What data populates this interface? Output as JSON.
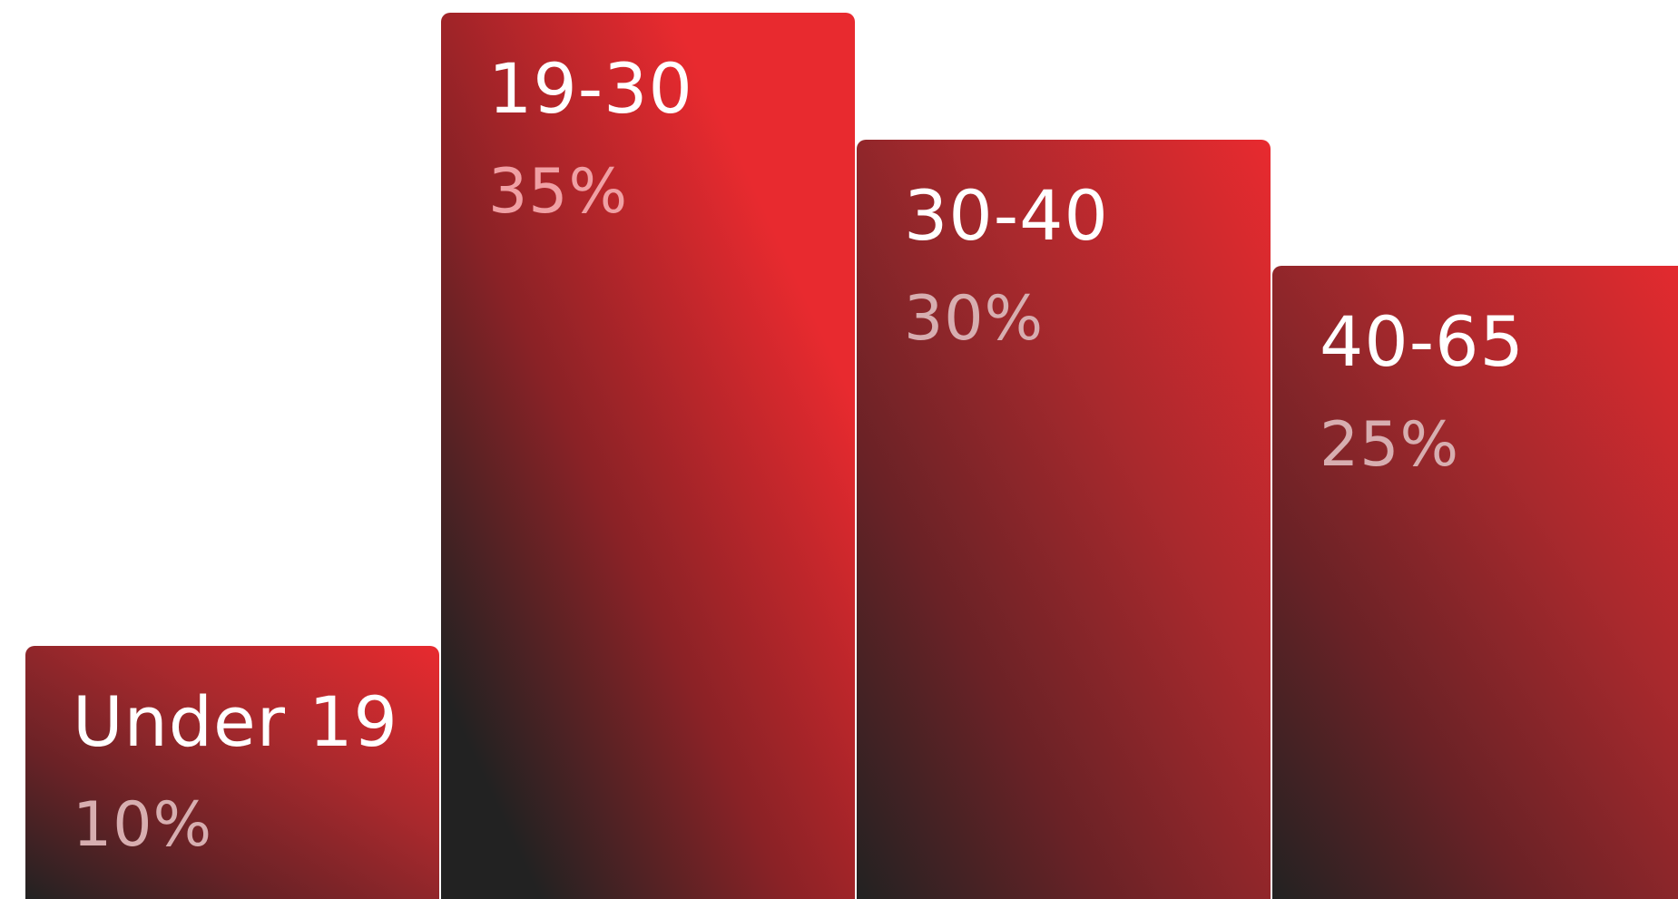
{
  "chart_data": {
    "type": "bar",
    "categories": [
      "Under 19",
      "19-30",
      "30-40",
      "40-65"
    ],
    "values": [
      10,
      35,
      30,
      25
    ],
    "value_labels": [
      "10%",
      "35%",
      "30%",
      "25%"
    ],
    "unit": "%",
    "ylim": [
      0,
      35
    ],
    "grid": false,
    "legend": "none",
    "title": "",
    "xlabel": "",
    "ylabel": ""
  },
  "colors": {
    "bar_red": "#e82a2f",
    "bar_dark": "#222222",
    "label_text": "#ffffff",
    "value_text_highlight": "#f0a0a4",
    "value_text": "#d7aeb0",
    "background": "#ffffff"
  }
}
